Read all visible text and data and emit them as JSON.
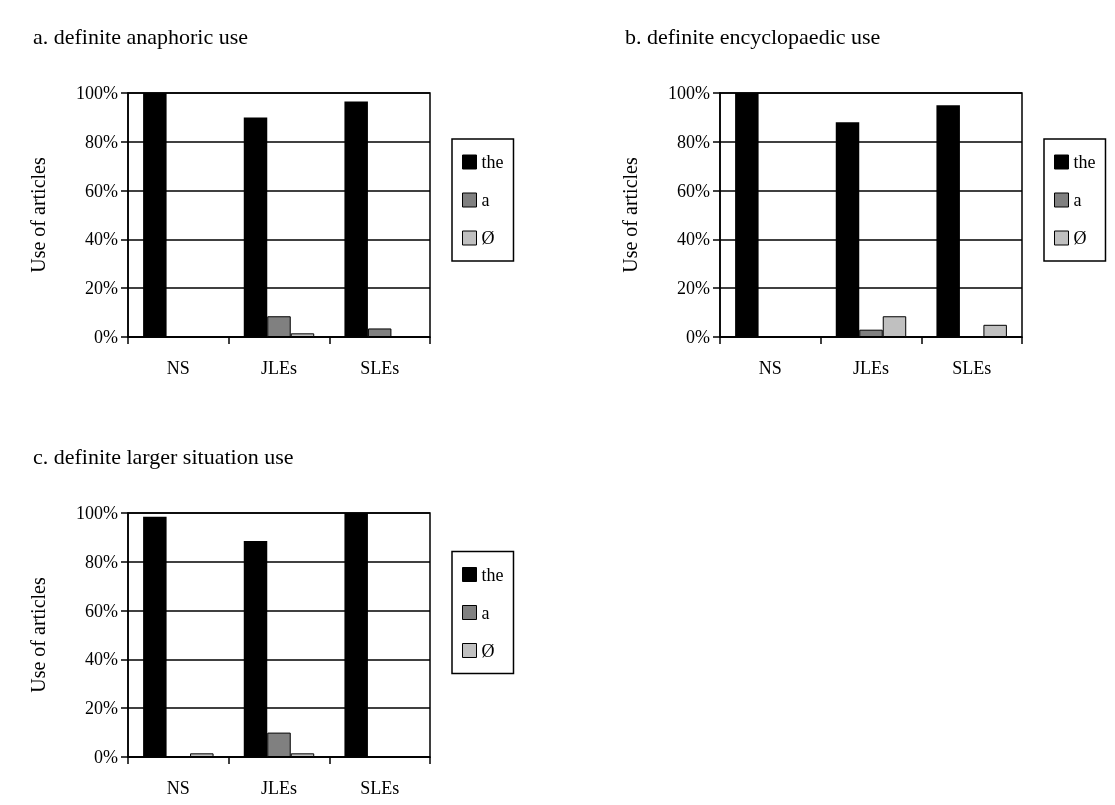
{
  "chart_data": [
    {
      "type": "bar",
      "title": "a. definite anaphoric use",
      "ylabel": "Use of articles",
      "categories": [
        "NS",
        "JLEs",
        "SLEs"
      ],
      "series": [
        {
          "name": "the",
          "color": "#000000",
          "values": [
            100,
            90,
            96.5
          ]
        },
        {
          "name": "a",
          "color": "#808080",
          "values": [
            0,
            8.5,
            3.5
          ]
        },
        {
          "name": "Ø",
          "color": "#c0c0c0",
          "values": [
            0,
            1.5,
            0
          ]
        }
      ],
      "ylim": [
        0,
        100
      ],
      "yticks": [
        {
          "value": 0,
          "label": "0%"
        },
        {
          "value": 20,
          "label": "20%"
        },
        {
          "value": 40,
          "label": "40%"
        },
        {
          "value": 60,
          "label": "60%"
        },
        {
          "value": 80,
          "label": "80%"
        },
        {
          "value": 100,
          "label": "100%"
        }
      ],
      "grid": "y",
      "legend": "right"
    },
    {
      "type": "bar",
      "title": "b. definite encyclopaedic use",
      "ylabel": "Use of articles",
      "categories": [
        "NS",
        "JLEs",
        "SLEs"
      ],
      "series": [
        {
          "name": "the",
          "color": "#000000",
          "values": [
            100,
            88,
            95
          ]
        },
        {
          "name": "a",
          "color": "#808080",
          "values": [
            0,
            3,
            0
          ]
        },
        {
          "name": "Ø",
          "color": "#c0c0c0",
          "values": [
            0,
            8.5,
            5
          ]
        }
      ],
      "ylim": [
        0,
        100
      ],
      "yticks": [
        {
          "value": 0,
          "label": "0%"
        },
        {
          "value": 20,
          "label": "20%"
        },
        {
          "value": 40,
          "label": "40%"
        },
        {
          "value": 60,
          "label": "60%"
        },
        {
          "value": 80,
          "label": "80%"
        },
        {
          "value": 100,
          "label": "100%"
        }
      ],
      "grid": "y",
      "legend": "right"
    },
    {
      "type": "bar",
      "title": "c. definite larger situation use",
      "ylabel": "Use of articles",
      "categories": [
        "NS",
        "JLEs",
        "SLEs"
      ],
      "series": [
        {
          "name": "the",
          "color": "#000000",
          "values": [
            98.5,
            88.5,
            100
          ]
        },
        {
          "name": "a",
          "color": "#808080",
          "values": [
            0,
            10,
            0
          ]
        },
        {
          "name": "Ø",
          "color": "#c0c0c0",
          "values": [
            1.5,
            1.5,
            0
          ]
        }
      ],
      "ylim": [
        0,
        100
      ],
      "yticks": [
        {
          "value": 0,
          "label": "0%"
        },
        {
          "value": 20,
          "label": "20%"
        },
        {
          "value": 40,
          "label": "40%"
        },
        {
          "value": 60,
          "label": "60%"
        },
        {
          "value": 80,
          "label": "80%"
        },
        {
          "value": 100,
          "label": "100%"
        }
      ],
      "grid": "y",
      "legend": "right"
    }
  ]
}
